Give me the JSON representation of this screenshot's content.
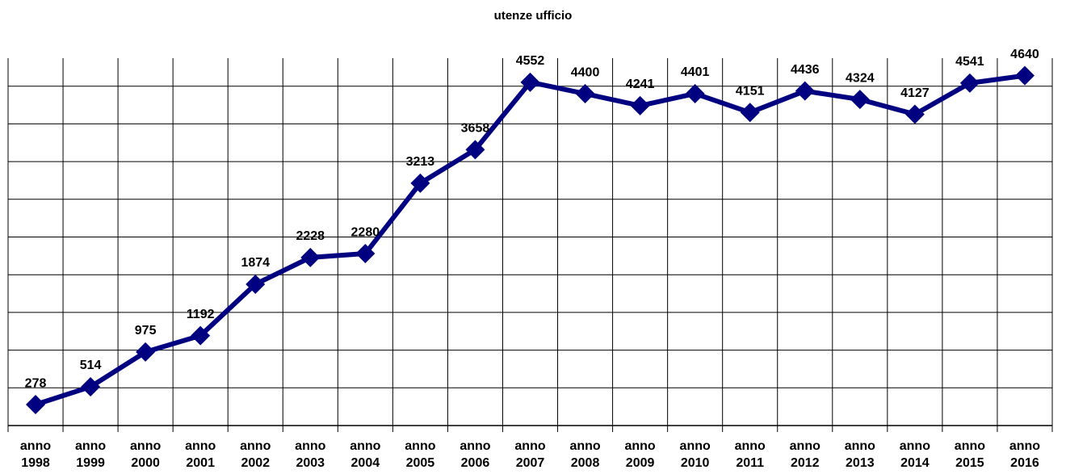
{
  "chart_data": {
    "type": "line",
    "title": "utenze ufficio",
    "categories": [
      "anno 1998",
      "anno 1999",
      "anno 2000",
      "anno 2001",
      "anno 2002",
      "anno 2003",
      "anno 2004",
      "anno 2005",
      "anno 2006",
      "anno 2007",
      "anno 2008",
      "anno 2009",
      "anno 2010",
      "anno 2011",
      "anno 2012",
      "anno 2013",
      "anno 2014",
      "anno 2015",
      "anno 2016"
    ],
    "series": [
      {
        "name": "utenze ufficio",
        "color": "#000080",
        "values": [
          278,
          514,
          975,
          1192,
          1874,
          2228,
          2280,
          3213,
          3658,
          4552,
          4400,
          4241,
          4401,
          4151,
          4436,
          4324,
          4127,
          4541,
          4640
        ]
      }
    ],
    "ylim": [
      0,
      5000
    ],
    "yticks": [
      0,
      500,
      1000,
      1500,
      2000,
      2500,
      3000,
      3500,
      4000,
      4500
    ],
    "grid": true
  }
}
